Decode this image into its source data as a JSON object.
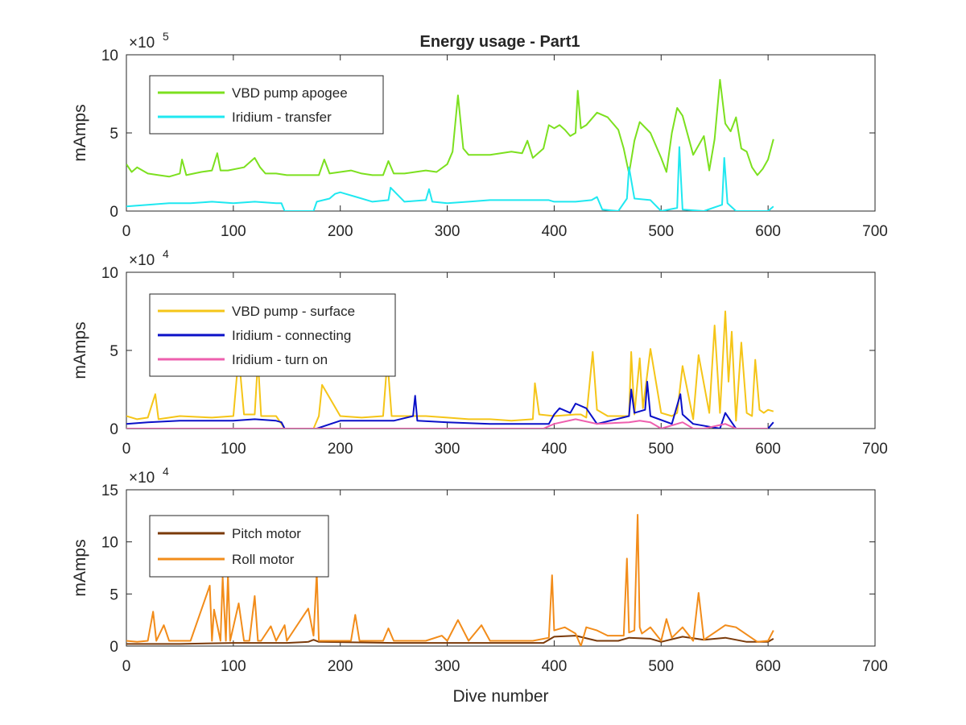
{
  "figure_title": "Energy usage - Part1",
  "chart_data": [
    {
      "type": "line",
      "title": "Energy usage - Part1",
      "xlabel": "",
      "ylabel": "mAmps",
      "xlim": [
        0,
        700
      ],
      "ylim": [
        0,
        10
      ],
      "y_multiplier": {
        "base": "×10",
        "exponent": "5"
      },
      "xticks": [
        "0",
        "100",
        "200",
        "300",
        "400",
        "500",
        "600",
        "700"
      ],
      "yticks": [
        "0",
        "5",
        "10"
      ],
      "legend_position": "top-left",
      "series": [
        {
          "name": "VBD pump apogee",
          "color": "#7CE01F",
          "x": [
            0,
            5,
            10,
            20,
            30,
            40,
            50,
            52,
            56,
            70,
            80,
            85,
            88,
            95,
            110,
            120,
            125,
            130,
            140,
            150,
            160,
            170,
            180,
            185,
            190,
            200,
            210,
            220,
            230,
            240,
            245,
            250,
            260,
            270,
            280,
            290,
            300,
            305,
            310,
            315,
            320,
            340,
            360,
            370,
            375,
            380,
            390,
            395,
            400,
            405,
            410,
            415,
            420,
            422,
            425,
            430,
            440,
            450,
            460,
            465,
            470,
            475,
            480,
            490,
            500,
            505,
            510,
            515,
            520,
            530,
            540,
            545,
            550,
            555,
            560,
            565,
            570,
            575,
            580,
            585,
            590,
            595,
            600,
            605
          ],
          "y": [
            3.0,
            2.5,
            2.8,
            2.4,
            2.3,
            2.2,
            2.4,
            3.3,
            2.3,
            2.5,
            2.6,
            3.7,
            2.6,
            2.6,
            2.8,
            3.4,
            2.8,
            2.4,
            2.4,
            2.3,
            2.3,
            2.3,
            2.3,
            3.3,
            2.4,
            2.5,
            2.6,
            2.4,
            2.3,
            2.3,
            3.2,
            2.4,
            2.4,
            2.5,
            2.6,
            2.5,
            3.0,
            3.8,
            7.4,
            4.0,
            3.6,
            3.6,
            3.8,
            3.7,
            4.5,
            3.4,
            4.0,
            5.5,
            5.3,
            5.5,
            5.2,
            4.8,
            5.0,
            7.7,
            5.3,
            5.5,
            6.3,
            6.0,
            5.2,
            4.0,
            2.4,
            4.5,
            5.7,
            5.0,
            3.4,
            2.5,
            5.0,
            6.6,
            6.1,
            3.6,
            4.8,
            2.6,
            4.6,
            8.4,
            5.6,
            5.1,
            6.0,
            4.0,
            3.8,
            2.8,
            2.3,
            2.7,
            3.3,
            4.6
          ]
        },
        {
          "name": "Iridium - transfer",
          "color": "#1FE8F0",
          "x": [
            0,
            20,
            40,
            60,
            80,
            100,
            120,
            140,
            145,
            148,
            175,
            178,
            190,
            195,
            200,
            205,
            215,
            230,
            245,
            247,
            260,
            280,
            283,
            286,
            300,
            320,
            340,
            360,
            380,
            395,
            400,
            420,
            435,
            440,
            445,
            460,
            468,
            470,
            475,
            490,
            500,
            515,
            517,
            520,
            540,
            557,
            559,
            562,
            570,
            580,
            600,
            605
          ],
          "y": [
            0.3,
            0.4,
            0.5,
            0.5,
            0.6,
            0.5,
            0.6,
            0.5,
            0.5,
            0.0,
            0.0,
            0.6,
            0.8,
            1.1,
            1.2,
            1.1,
            0.9,
            0.6,
            0.7,
            1.5,
            0.6,
            0.7,
            1.4,
            0.6,
            0.5,
            0.6,
            0.7,
            0.7,
            0.7,
            0.7,
            0.6,
            0.6,
            0.7,
            0.9,
            0.1,
            0.0,
            0.8,
            2.8,
            0.8,
            0.7,
            0.0,
            0.2,
            4.1,
            0.1,
            0.0,
            0.4,
            3.4,
            0.5,
            0.0,
            0.0,
            0.0,
            0.3
          ]
        }
      ]
    },
    {
      "type": "line",
      "title": "",
      "xlabel": "",
      "ylabel": "mAmps",
      "xlim": [
        0,
        700
      ],
      "ylim": [
        0,
        10
      ],
      "y_multiplier": {
        "base": "×10",
        "exponent": "4"
      },
      "xticks": [
        "0",
        "100",
        "200",
        "300",
        "400",
        "500",
        "600",
        "700"
      ],
      "yticks": [
        "0",
        "5",
        "10"
      ],
      "legend_position": "top-left",
      "series": [
        {
          "name": "VBD pump - surface",
          "color": "#F5C518",
          "x": [
            0,
            10,
            20,
            27,
            30,
            50,
            80,
            100,
            105,
            110,
            120,
            123,
            126,
            140,
            148,
            175,
            180,
            183,
            200,
            220,
            240,
            244,
            248,
            260,
            280,
            300,
            320,
            340,
            360,
            380,
            382,
            386,
            400,
            420,
            425,
            430,
            436,
            440,
            450,
            460,
            470,
            472,
            475,
            480,
            483,
            490,
            500,
            510,
            515,
            520,
            530,
            535,
            545,
            550,
            555,
            560,
            563,
            566,
            570,
            575,
            580,
            585,
            588,
            592,
            596,
            600,
            605
          ],
          "y": [
            0.8,
            0.6,
            0.7,
            2.2,
            0.6,
            0.8,
            0.7,
            0.8,
            4.7,
            0.9,
            0.9,
            4.4,
            0.8,
            0.8,
            0.0,
            0.0,
            0.8,
            2.8,
            0.8,
            0.7,
            0.8,
            4.4,
            0.8,
            0.8,
            0.8,
            0.7,
            0.6,
            0.6,
            0.5,
            0.6,
            2.9,
            0.9,
            0.8,
            0.9,
            0.9,
            0.7,
            4.9,
            1.2,
            0.8,
            0.8,
            0.8,
            4.9,
            0.9,
            4.5,
            1.3,
            5.1,
            1.0,
            0.8,
            1.0,
            4.0,
            0.6,
            4.7,
            1.0,
            6.6,
            1.0,
            7.5,
            3.0,
            6.2,
            0.5,
            5.5,
            1.0,
            0.8,
            4.4,
            1.2,
            1.0,
            1.2,
            1.1
          ]
        },
        {
          "name": "Iridium - connecting",
          "color": "#0A10C8",
          "x": [
            0,
            20,
            50,
            80,
            100,
            120,
            140,
            145,
            148,
            178,
            200,
            220,
            250,
            268,
            270,
            272,
            300,
            340,
            380,
            395,
            400,
            405,
            415,
            420,
            430,
            440,
            470,
            472,
            475,
            485,
            487,
            490,
            510,
            518,
            520,
            530,
            555,
            560,
            565,
            570,
            580,
            600,
            605
          ],
          "y": [
            0.3,
            0.4,
            0.5,
            0.5,
            0.5,
            0.6,
            0.5,
            0.4,
            0.0,
            0.0,
            0.5,
            0.5,
            0.5,
            0.8,
            2.1,
            0.5,
            0.4,
            0.3,
            0.3,
            0.3,
            0.9,
            1.3,
            1.0,
            1.6,
            1.3,
            0.3,
            0.8,
            2.5,
            1.0,
            1.2,
            3.0,
            0.8,
            0.3,
            2.2,
            0.9,
            0.3,
            0.0,
            1.0,
            0.5,
            0.0,
            0.0,
            0.0,
            0.4
          ]
        },
        {
          "name": "Iridium - turn on",
          "color": "#EE5FAE",
          "x": [
            0,
            100,
            200,
            300,
            390,
            400,
            420,
            440,
            470,
            480,
            490,
            500,
            520,
            530,
            540,
            560,
            570,
            600
          ],
          "y": [
            0.0,
            0.0,
            0.0,
            0.0,
            0.0,
            0.3,
            0.6,
            0.3,
            0.4,
            0.5,
            0.4,
            0.0,
            0.4,
            0.0,
            0.0,
            0.3,
            0.0,
            0.0
          ]
        }
      ]
    },
    {
      "type": "line",
      "title": "",
      "xlabel": "Dive number",
      "ylabel": "mAmps",
      "xlim": [
        0,
        700
      ],
      "ylim": [
        0,
        15
      ],
      "y_multiplier": {
        "base": "×10",
        "exponent": "4"
      },
      "xticks": [
        "0",
        "100",
        "200",
        "300",
        "400",
        "500",
        "600",
        "700"
      ],
      "yticks": [
        "0",
        "5",
        "10",
        "15"
      ],
      "legend_position": "top-left",
      "series": [
        {
          "name": "Pitch motor",
          "color": "#7A3A0A",
          "x": [
            0,
            50,
            100,
            150,
            170,
            175,
            180,
            250,
            300,
            350,
            390,
            400,
            420,
            440,
            460,
            470,
            490,
            500,
            520,
            540,
            560,
            580,
            600,
            605
          ],
          "y": [
            0.2,
            0.2,
            0.3,
            0.3,
            0.4,
            0.6,
            0.4,
            0.3,
            0.3,
            0.3,
            0.3,
            0.9,
            1.0,
            0.5,
            0.5,
            0.8,
            0.7,
            0.4,
            0.9,
            0.6,
            0.8,
            0.4,
            0.4,
            0.7
          ]
        },
        {
          "name": "Roll motor",
          "color": "#F28C1A",
          "x": [
            0,
            10,
            20,
            25,
            28,
            35,
            40,
            50,
            60,
            78,
            80,
            82,
            88,
            90,
            93,
            95,
            97,
            105,
            110,
            115,
            120,
            123,
            126,
            135,
            140,
            148,
            150,
            170,
            175,
            178,
            180,
            182,
            190,
            210,
            214,
            218,
            230,
            240,
            245,
            250,
            270,
            280,
            295,
            300,
            310,
            320,
            332,
            340,
            380,
            395,
            398,
            400,
            410,
            420,
            425,
            430,
            440,
            450,
            465,
            468,
            470,
            475,
            478,
            480,
            482,
            490,
            500,
            505,
            510,
            520,
            530,
            535,
            540,
            550,
            560,
            570,
            590,
            600,
            605
          ],
          "y": [
            0.5,
            0.4,
            0.5,
            3.3,
            0.5,
            2.0,
            0.5,
            0.5,
            0.5,
            5.8,
            0.5,
            3.5,
            0.5,
            6.6,
            0.5,
            6.9,
            0.5,
            4.1,
            0.5,
            0.5,
            4.8,
            0.5,
            0.5,
            1.9,
            0.5,
            2.0,
            0.5,
            3.6,
            1.0,
            7.1,
            0.5,
            0.5,
            0.5,
            0.5,
            3.0,
            0.5,
            0.5,
            0.5,
            1.7,
            0.5,
            0.5,
            0.5,
            1.0,
            0.5,
            2.5,
            0.5,
            2.0,
            0.5,
            0.5,
            0.8,
            6.8,
            1.5,
            1.8,
            1.2,
            0.0,
            1.8,
            1.5,
            1.0,
            1.0,
            8.4,
            1.3,
            1.5,
            12.6,
            1.8,
            1.2,
            1.8,
            0.5,
            2.6,
            0.8,
            1.8,
            0.5,
            5.1,
            0.6,
            1.3,
            2.0,
            1.8,
            0.4,
            0.5,
            1.5
          ]
        }
      ]
    }
  ]
}
